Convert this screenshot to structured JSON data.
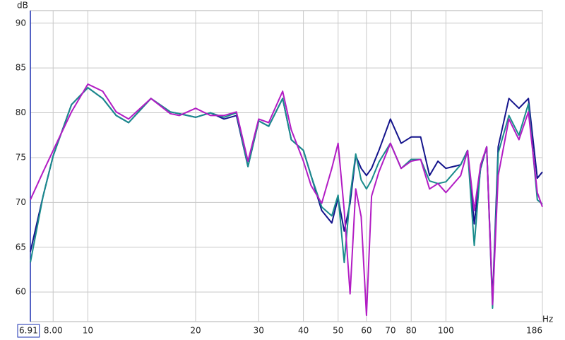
{
  "chart_data": {
    "type": "line",
    "y_label": "dB",
    "x_label": "Hz",
    "log_x": true,
    "grid": true,
    "xlim": [
      6.91,
      186
    ],
    "ylim": [
      56.7,
      91.4
    ],
    "xticks": [
      6.91,
      {
        "value": 8,
        "label": "8.00"
      },
      10,
      20,
      30,
      40,
      50,
      60,
      70,
      80,
      100,
      186
    ],
    "yticks": [
      60,
      65,
      70,
      75,
      80,
      85,
      90
    ],
    "x": [
      6.91,
      7.5,
      8,
      9,
      10,
      11,
      12,
      13,
      15,
      17,
      18,
      20,
      22,
      24,
      26,
      28,
      30,
      32,
      35,
      37,
      40,
      42,
      45,
      48,
      50,
      52,
      54,
      56,
      58,
      60,
      62,
      65,
      70,
      75,
      80,
      85,
      90,
      95,
      100,
      110,
      115,
      120,
      125,
      130,
      135,
      140,
      150,
      160,
      170,
      180,
      186
    ],
    "series": [
      {
        "color": "#14148c",
        "values": [
          64.5,
          70.7,
          75.2,
          80.9,
          82.8,
          81.6,
          79.7,
          78.9,
          81.6,
          80.1,
          79.9,
          79.5,
          80.0,
          79.3,
          79.7,
          74.0,
          79.1,
          78.5,
          81.6,
          77.0,
          75.8,
          73.0,
          69.1,
          67.7,
          70.5,
          66.8,
          69.9,
          75.2,
          73.8,
          73.0,
          73.8,
          75.8,
          79.3,
          76.6,
          77.3,
          77.3,
          73.0,
          74.6,
          73.8,
          74.2,
          75.8,
          67.6,
          73.8,
          76.2,
          59.0,
          76.2,
          81.6,
          80.5,
          81.6,
          72.7,
          73.4
        ]
      },
      {
        "color": "#1a8c8c",
        "values": [
          63.3,
          70.7,
          75.2,
          80.9,
          82.8,
          81.6,
          79.7,
          78.9,
          81.6,
          80.1,
          79.9,
          79.5,
          80.0,
          79.5,
          80.0,
          74.0,
          79.1,
          78.5,
          81.6,
          77.0,
          75.8,
          73.0,
          69.5,
          68.5,
          70.8,
          63.3,
          70.7,
          75.4,
          72.5,
          71.5,
          72.5,
          74.5,
          76.6,
          73.8,
          74.8,
          74.8,
          72.4,
          72.1,
          72.3,
          74.2,
          75.8,
          65.2,
          74.0,
          76.2,
          58.2,
          75.5,
          79.7,
          77.5,
          81.0,
          70.3,
          69.8
        ]
      },
      {
        "color": "#b21cc4",
        "values": [
          70.3,
          73.4,
          75.8,
          80.1,
          83.2,
          82.4,
          80.1,
          79.3,
          81.6,
          79.9,
          79.7,
          80.5,
          79.7,
          79.7,
          80.1,
          74.6,
          79.3,
          78.9,
          82.4,
          78.1,
          74.6,
          71.9,
          69.9,
          73.8,
          76.6,
          69.1,
          59.8,
          71.5,
          68.4,
          57.4,
          70.7,
          73.4,
          76.6,
          73.8,
          74.6,
          74.8,
          71.5,
          72.1,
          71.1,
          73.0,
          75.8,
          69.1,
          74.2,
          76.2,
          58.6,
          73.0,
          79.3,
          77.0,
          80.1,
          71.1,
          69.5
        ]
      }
    ]
  }
}
